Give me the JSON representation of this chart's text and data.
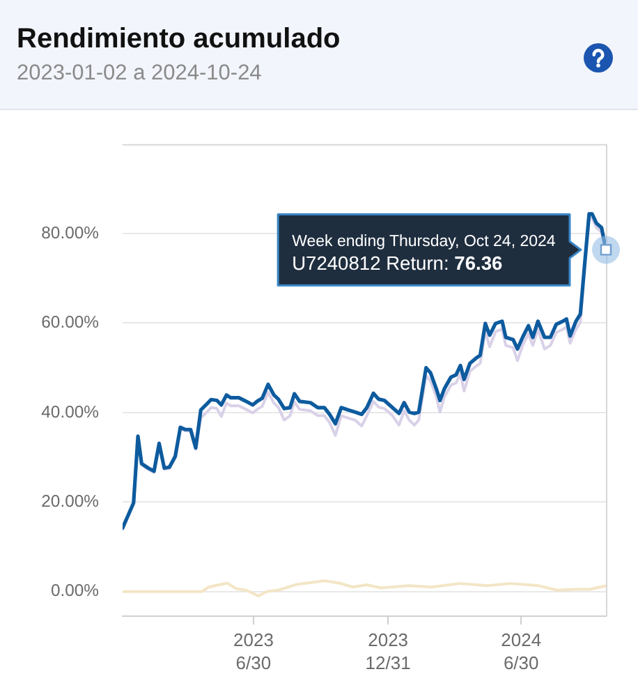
{
  "chart_data": {
    "type": "line",
    "title": "Rendimiento acumulado",
    "subtitle": "2023-01-02 a 2024-10-24",
    "annotations": [
      {
        "text": "Week ending Thursday, Oct 24, 2024\nU7240812 Return: 76.36",
        "x": "2024-10-24",
        "y": 76.36
      }
    ],
    "xlim": [
      "2023-01-02",
      "2024-10-24"
    ],
    "xticks": [
      {
        "value": "2023-06-30",
        "label": "2023\n6/30"
      },
      {
        "value": "2023-12-31",
        "label": "2023\n12/31"
      },
      {
        "value": "2024-06-30",
        "label": "2024\n6/30"
      }
    ],
    "ylim": [
      -5.5,
      100
    ],
    "yticks": [
      {
        "value": 0,
        "label": "0.00%"
      },
      {
        "value": 20,
        "label": "20.00%"
      },
      {
        "value": 40,
        "label": "40.00%"
      },
      {
        "value": 60,
        "label": "60.00%"
      },
      {
        "value": 80,
        "label": "80.00%"
      }
    ],
    "grid": "y",
    "marker": "none",
    "series": [
      {
        "color": "#f3e5c6",
        "x": [
          "2023-01-02",
          "2023-04-20",
          "2023-04-30",
          "2023-05-25",
          "2023-06-07",
          "2023-06-20",
          "2023-07-07",
          "2023-07-18",
          "2023-08-03",
          "2023-08-28",
          "2023-10-05",
          "2023-10-25",
          "2023-11-13",
          "2023-12-02",
          "2023-12-21",
          "2024-01-28",
          "2024-02-29",
          "2024-04-07",
          "2024-05-15",
          "2024-06-16",
          "2024-07-24",
          "2024-08-18",
          "2024-09-13",
          "2024-10-02",
          "2024-10-24"
        ],
        "values": [
          0,
          0,
          1.0,
          1.9,
          0.6,
          0.3,
          -1.0,
          0,
          0.3,
          1.6,
          2.4,
          1.9,
          1.0,
          1.5,
          0.8,
          1.3,
          1.0,
          1.8,
          1.3,
          1.8,
          1.3,
          0.3,
          0.5,
          0.5,
          1.3
        ]
      },
      {
        "color": "#d9d1e8",
        "x": [
          "2023-01-02",
          "2023-01-17",
          "2023-01-23",
          "2023-01-28",
          "2023-02-06",
          "2023-02-14",
          "2023-02-21",
          "2023-02-28",
          "2023-03-07",
          "2023-03-15",
          "2023-03-22",
          "2023-03-29",
          "2023-04-05",
          "2023-04-12",
          "2023-04-19",
          "2023-04-26",
          "2023-05-03",
          "2023-05-11",
          "2023-05-17",
          "2023-05-24",
          "2023-05-30",
          "2023-06-10",
          "2023-06-20",
          "2023-06-29",
          "2023-07-05",
          "2023-07-12",
          "2023-07-20",
          "2023-07-28",
          "2023-08-03",
          "2023-08-11",
          "2023-08-19",
          "2023-08-25",
          "2023-09-01",
          "2023-09-16",
          "2023-09-26",
          "2023-10-05",
          "2023-10-12",
          "2023-10-20",
          "2023-10-28",
          "2023-11-06",
          "2023-11-16",
          "2023-11-25",
          "2023-12-02",
          "2023-12-11",
          "2023-12-18",
          "2023-12-26",
          "2024-01-06",
          "2024-01-15",
          "2024-01-22",
          "2024-01-29",
          "2024-02-05",
          "2024-02-11",
          "2024-02-21",
          "2024-02-27",
          "2024-03-06",
          "2024-03-11",
          "2024-03-17",
          "2024-03-26",
          "2024-04-02",
          "2024-04-08",
          "2024-04-13",
          "2024-04-21",
          "2024-04-29",
          "2024-05-05",
          "2024-05-12",
          "2024-05-18",
          "2024-05-26",
          "2024-06-04",
          "2024-06-09",
          "2024-06-19",
          "2024-06-25",
          "2024-07-02",
          "2024-07-10",
          "2024-07-16",
          "2024-07-23",
          "2024-08-01",
          "2024-08-09",
          "2024-08-17",
          "2024-08-26",
          "2024-08-31",
          "2024-09-05",
          "2024-09-13",
          "2024-09-19",
          "2024-09-25",
          "2024-10-01",
          "2024-10-05",
          "2024-10-11",
          "2024-10-18",
          "2024-10-24"
        ],
        "values": [
          13.9,
          19.5,
          34.4,
          28.3,
          27.3,
          26.6,
          32.8,
          27.3,
          27.5,
          29.9,
          36.4,
          35.9,
          35.9,
          31.8,
          38.8,
          39.9,
          41.1,
          40.9,
          39.1,
          42.1,
          41.5,
          41.5,
          40.7,
          39.9,
          40.7,
          41.4,
          44.5,
          42.1,
          41.2,
          38.3,
          39.3,
          42.4,
          40.7,
          40.4,
          39.3,
          39.3,
          37.8,
          34.9,
          39.3,
          38.8,
          38.3,
          37.0,
          39.3,
          42.5,
          41.2,
          40.9,
          39.3,
          37.2,
          40.4,
          38.3,
          37.2,
          38.3,
          48.2,
          47.1,
          43.5,
          40.1,
          43.5,
          46.1,
          46.6,
          48.7,
          44.8,
          49.2,
          50.3,
          51.0,
          58.1,
          54.7,
          58.1,
          58.6,
          55.0,
          54.5,
          51.6,
          55.0,
          57.6,
          55.0,
          58.6,
          54.2,
          55.0,
          57.9,
          58.6,
          59.1,
          55.5,
          58.6,
          60.2,
          72.4,
          83.4,
          83.4,
          81.3,
          80.3,
          75.4
        ]
      },
      {
        "color": "#0d5b9e",
        "x": [
          "2023-01-02",
          "2023-01-17",
          "2023-01-23",
          "2023-01-28",
          "2023-02-06",
          "2023-02-14",
          "2023-02-21",
          "2023-02-28",
          "2023-03-07",
          "2023-03-15",
          "2023-03-22",
          "2023-03-29",
          "2023-04-05",
          "2023-04-12",
          "2023-04-19",
          "2023-04-26",
          "2023-05-03",
          "2023-05-11",
          "2023-05-17",
          "2023-05-24",
          "2023-05-30",
          "2023-06-10",
          "2023-06-20",
          "2023-06-29",
          "2023-07-05",
          "2023-07-12",
          "2023-07-20",
          "2023-07-28",
          "2023-08-03",
          "2023-08-11",
          "2023-08-19",
          "2023-08-25",
          "2023-09-01",
          "2023-09-16",
          "2023-09-26",
          "2023-10-05",
          "2023-10-12",
          "2023-10-20",
          "2023-10-28",
          "2023-11-06",
          "2023-11-16",
          "2023-11-25",
          "2023-12-02",
          "2023-12-11",
          "2023-12-18",
          "2023-12-26",
          "2024-01-06",
          "2024-01-15",
          "2024-01-22",
          "2024-01-29",
          "2024-02-05",
          "2024-02-11",
          "2024-02-21",
          "2024-02-27",
          "2024-03-06",
          "2024-03-11",
          "2024-03-17",
          "2024-03-26",
          "2024-04-02",
          "2024-04-08",
          "2024-04-13",
          "2024-04-21",
          "2024-04-29",
          "2024-05-05",
          "2024-05-12",
          "2024-05-18",
          "2024-05-26",
          "2024-06-04",
          "2024-06-09",
          "2024-06-19",
          "2024-06-25",
          "2024-07-02",
          "2024-07-10",
          "2024-07-16",
          "2024-07-23",
          "2024-08-01",
          "2024-08-09",
          "2024-08-17",
          "2024-08-26",
          "2024-08-31",
          "2024-09-05",
          "2024-09-13",
          "2024-09-19",
          "2024-09-25",
          "2024-10-01",
          "2024-10-05",
          "2024-10-11",
          "2024-10-18",
          "2024-10-24"
        ],
        "values": [
          14.2,
          19.8,
          34.7,
          28.6,
          27.6,
          26.9,
          33.1,
          27.6,
          27.8,
          30.2,
          36.7,
          36.2,
          36.2,
          32.1,
          40.6,
          41.7,
          42.9,
          42.7,
          41.7,
          43.9,
          43.3,
          43.3,
          42.5,
          41.7,
          42.5,
          43.2,
          46.3,
          43.9,
          43.0,
          40.9,
          41.1,
          44.2,
          42.5,
          42.2,
          41.1,
          41.1,
          39.6,
          37.5,
          41.1,
          40.6,
          40.1,
          39.6,
          41.1,
          44.3,
          43.0,
          42.7,
          41.1,
          39.8,
          42.2,
          40.1,
          39.8,
          40.1,
          50.0,
          48.9,
          45.3,
          42.7,
          45.3,
          47.9,
          48.4,
          50.5,
          47.4,
          51.0,
          52.1,
          52.8,
          59.9,
          57.3,
          59.9,
          60.4,
          56.8,
          56.3,
          54.2,
          56.8,
          59.4,
          56.8,
          60.4,
          56.8,
          56.8,
          59.7,
          60.4,
          60.9,
          57.1,
          60.4,
          62.0,
          73.4,
          84.4,
          84.4,
          82.3,
          81.3,
          76.36
        ]
      }
    ]
  }
}
